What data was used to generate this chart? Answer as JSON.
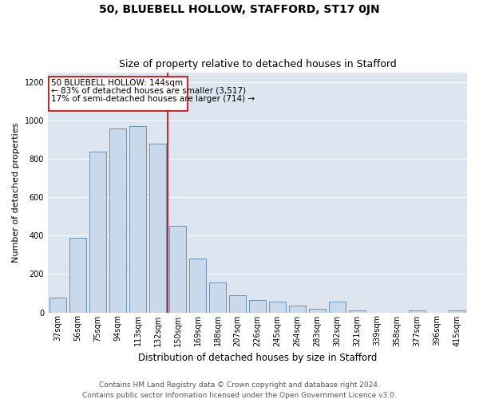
{
  "title": "50, BLUEBELL HOLLOW, STAFFORD, ST17 0JN",
  "subtitle": "Size of property relative to detached houses in Stafford",
  "xlabel": "Distribution of detached houses by size in Stafford",
  "ylabel": "Number of detached properties",
  "footer_line1": "Contains HM Land Registry data © Crown copyright and database right 2024.",
  "footer_line2": "Contains public sector information licensed under the Open Government Licence v3.0.",
  "annotation_line1": "50 BLUEBELL HOLLOW: 144sqm",
  "annotation_line2": "← 83% of detached houses are smaller (3,517)",
  "annotation_line3": "17% of semi-detached houses are larger (714) →",
  "bar_categories": [
    "37sqm",
    "56sqm",
    "75sqm",
    "94sqm",
    "113sqm",
    "132sqm",
    "150sqm",
    "169sqm",
    "188sqm",
    "207sqm",
    "226sqm",
    "245sqm",
    "264sqm",
    "283sqm",
    "302sqm",
    "321sqm",
    "339sqm",
    "358sqm",
    "377sqm",
    "396sqm",
    "415sqm"
  ],
  "bar_values": [
    75,
    390,
    840,
    960,
    970,
    880,
    450,
    280,
    155,
    90,
    65,
    55,
    35,
    20,
    55,
    10,
    0,
    0,
    10,
    0,
    10
  ],
  "bar_facecolor": "#c9d9ea",
  "bar_edgecolor": "#5a86b0",
  "background_color": "#dde6f0",
  "fig_facecolor": "#ffffff",
  "ylim": [
    0,
    1250
  ],
  "yticks": [
    0,
    200,
    400,
    600,
    800,
    1000,
    1200
  ],
  "vline_color": "#cc0000",
  "vline_x_idx": 6,
  "annotation_box_color": "#cc0000",
  "grid_color": "#ffffff",
  "title_fontsize": 10,
  "subtitle_fontsize": 9,
  "ylabel_fontsize": 8,
  "xlabel_fontsize": 8.5,
  "tick_fontsize": 7,
  "annotation_fontsize": 7.5,
  "footer_fontsize": 6.5
}
